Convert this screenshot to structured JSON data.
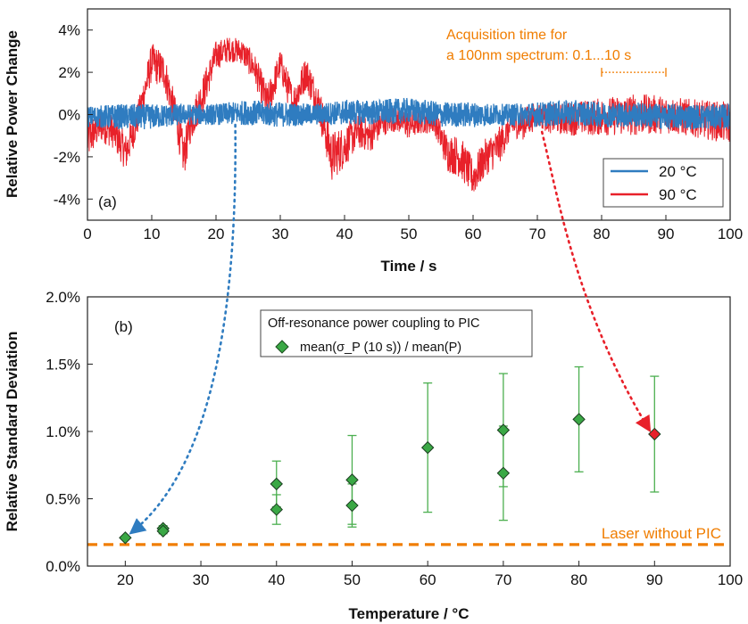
{
  "chart_data": [
    {
      "panel": "(a)",
      "type": "line",
      "xlabel": "Time / s",
      "ylabel": "Relative Power Change",
      "xlim": [
        0,
        100
      ],
      "ylim": [
        -5,
        5
      ],
      "xticks": [
        "0",
        "10",
        "20",
        "30",
        "40",
        "50",
        "60",
        "70",
        "80",
        "90",
        "100"
      ],
      "yticks": [
        "-4%",
        "-2%",
        "0%",
        "2%",
        "4%"
      ],
      "legend_position": "bottom-right",
      "series": [
        {
          "name": "20 °C",
          "color": "#2f7cc0",
          "envelope": {
            "x": [
              0,
              5,
              10,
              15,
              20,
              25,
              30,
              35,
              40,
              45,
              50,
              55,
              60,
              65,
              70,
              75,
              80,
              85,
              90,
              95,
              100
            ],
            "center": [
              -0.1,
              -0.1,
              -0.1,
              0.0,
              0.0,
              0.1,
              0.0,
              0.0,
              0.1,
              0.1,
              0.2,
              0.0,
              0.0,
              0.0,
              0.0,
              0.1,
              0.0,
              0.0,
              -0.1,
              -0.1,
              -0.1
            ],
            "amplitude": [
              0.5,
              0.6,
              0.6,
              0.5,
              0.5,
              0.6,
              0.6,
              0.5,
              0.6,
              0.6,
              0.6,
              0.6,
              0.6,
              0.5,
              0.6,
              0.6,
              0.6,
              0.6,
              0.6,
              0.6,
              0.6
            ]
          }
        },
        {
          "name": "90 °C",
          "color": "#e8212a",
          "envelope": {
            "x": [
              0,
              2,
              4,
              6,
              8,
              10,
              12,
              14,
              15,
              16,
              18,
              20,
              22,
              24,
              26,
              28,
              30,
              32,
              34,
              36,
              38,
              40,
              42,
              44,
              46,
              48,
              50,
              52,
              54,
              56,
              58,
              60,
              62,
              64,
              66,
              68,
              70,
              72,
              75,
              80,
              85,
              90,
              95,
              100
            ],
            "center": [
              -1.2,
              -0.5,
              -0.8,
              -1.8,
              0.0,
              2.5,
              2.0,
              -0.5,
              -2.0,
              -0.5,
              1.0,
              2.8,
              3.1,
              3.0,
              2.2,
              0.5,
              2.4,
              0.5,
              2.0,
              0.5,
              -2.0,
              -1.5,
              -0.8,
              -1.0,
              -0.3,
              -0.2,
              -0.5,
              -0.3,
              -0.3,
              -1.8,
              -2.0,
              -3.0,
              -2.0,
              -1.5,
              -0.5,
              -0.4,
              0.0,
              -0.2,
              -0.2,
              -0.1,
              0.0,
              0.0,
              -0.2,
              -0.4
            ],
            "amplitude": [
              1.0,
              0.8,
              0.8,
              0.9,
              0.8,
              0.9,
              0.9,
              0.9,
              1.0,
              0.9,
              0.9,
              0.7,
              0.6,
              0.6,
              0.7,
              0.9,
              0.7,
              0.9,
              0.8,
              0.9,
              1.2,
              1.0,
              0.8,
              0.8,
              0.7,
              0.6,
              0.7,
              0.6,
              0.6,
              0.9,
              1.0,
              0.9,
              0.9,
              0.9,
              0.6,
              0.8,
              0.6,
              0.7,
              0.8,
              0.9,
              1.0,
              0.9,
              0.9,
              1.0
            ]
          }
        }
      ],
      "annotations": [
        {
          "text": "Acquisition time for",
          "color": "#f07d00"
        },
        {
          "text": "a 100nm spectrum: 0.1...10 s",
          "color": "#f07d00"
        },
        {
          "type": "range_bracket",
          "x": [
            80,
            90
          ],
          "y": 2.0,
          "color": "#f07d00"
        }
      ]
    },
    {
      "panel": "(b)",
      "type": "scatter",
      "xlabel": "Temperature / °C",
      "ylabel": "Relative Standard Deviation",
      "xlim": [
        15,
        100
      ],
      "ylim": [
        0,
        2.0
      ],
      "xticks": [
        "20",
        "30",
        "40",
        "50",
        "60",
        "70",
        "80",
        "90",
        "100"
      ],
      "yticks": [
        "0.0%",
        "0.5%",
        "1.0%",
        "1.5%",
        "2.0%"
      ],
      "legend_title": "Off-resonance power coupling to PIC",
      "legend_entry": "mean(σ_P (10 s)) / mean(P)",
      "legend_position": "top-left",
      "points": [
        {
          "x": 20,
          "y": 0.21,
          "err": 0.0,
          "highlight": "blue"
        },
        {
          "x": 25,
          "y": 0.28,
          "err": 0.02
        },
        {
          "x": 25,
          "y": 0.26,
          "err": 0.02
        },
        {
          "x": 40,
          "y": 0.61,
          "err": 0.17
        },
        {
          "x": 40,
          "y": 0.42,
          "err": 0.11
        },
        {
          "x": 50,
          "y": 0.64,
          "err": 0.33
        },
        {
          "x": 50,
          "y": 0.45,
          "err": 0.16
        },
        {
          "x": 60,
          "y": 0.88,
          "err": 0.48
        },
        {
          "x": 70,
          "y": 1.01,
          "err": 0.42
        },
        {
          "x": 70,
          "y": 0.69,
          "err": 0.35
        },
        {
          "x": 80,
          "y": 1.09,
          "err": 0.39
        },
        {
          "x": 90,
          "y": 0.98,
          "err": 0.43,
          "highlight": "red"
        }
      ],
      "marker_color": "#3aa845",
      "errorbar_color": "#4caf50",
      "reference_line": {
        "y": 0.16,
        "label": "Laser without PIC",
        "color": "#f07d00"
      }
    }
  ],
  "arrows": [
    {
      "from_panel": "(a)",
      "from_x": 23,
      "to_panel": "(b)",
      "to_x": 20,
      "color": "#2f7cc0"
    },
    {
      "from_panel": "(a)",
      "from_x": 71,
      "to_panel": "(b)",
      "to_x": 90,
      "color": "#e8212a"
    }
  ]
}
